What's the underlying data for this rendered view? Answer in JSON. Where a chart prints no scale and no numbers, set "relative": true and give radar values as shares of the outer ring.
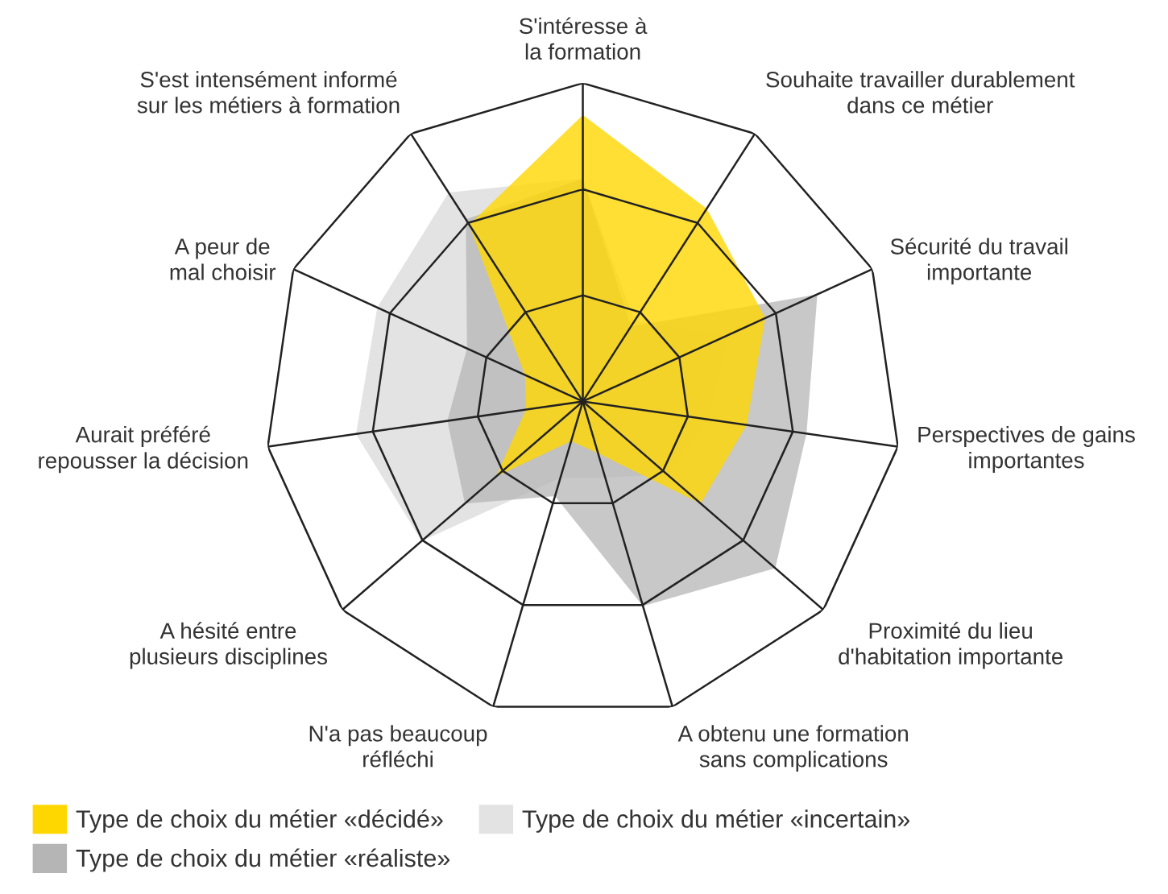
{
  "chart_data": {
    "type": "radar",
    "relative": true,
    "grid": true,
    "legend": "bottom left",
    "categories": [
      "S'intéresse à\nla formation",
      "Souhaite travailler durablement\ndans ce métier",
      "Sécurité du travail\nimportante",
      "Perspectives de gains\nimportantes",
      "Proximité du lieu\nd'habitation importante",
      "A obtenu une formation\nsans complications",
      "N'a pas beaucoup\nréfléchi",
      "A hésité entre\nplusieurs disciplines",
      "Aurait préféré\nrepousser la décision",
      "A peur de\nmal choisir",
      "S'est intensément informé\nsur les métiers à formation"
    ],
    "series": [
      {
        "name": "Type de choix du métier «incertain»",
        "color": "#e3e3e3",
        "values": [
          0.7,
          0.3,
          0.5,
          0.4,
          0.35,
          0.25,
          0.25,
          0.67,
          0.72,
          0.71,
          0.78
        ]
      },
      {
        "name": "Type de choix du métier «réaliste»",
        "color": "#b5b5b5",
        "values": [
          0.7,
          0.28,
          0.81,
          0.71,
          0.8,
          0.67,
          0.31,
          0.49,
          0.43,
          0.4,
          0.68
        ]
      },
      {
        "name": "Type de choix du métier «décidé»",
        "color": "#ffd700",
        "values": [
          0.9,
          0.72,
          0.63,
          0.52,
          0.49,
          0.17,
          0.13,
          0.36,
          0.18,
          0.2,
          0.66
        ]
      }
    ]
  }
}
